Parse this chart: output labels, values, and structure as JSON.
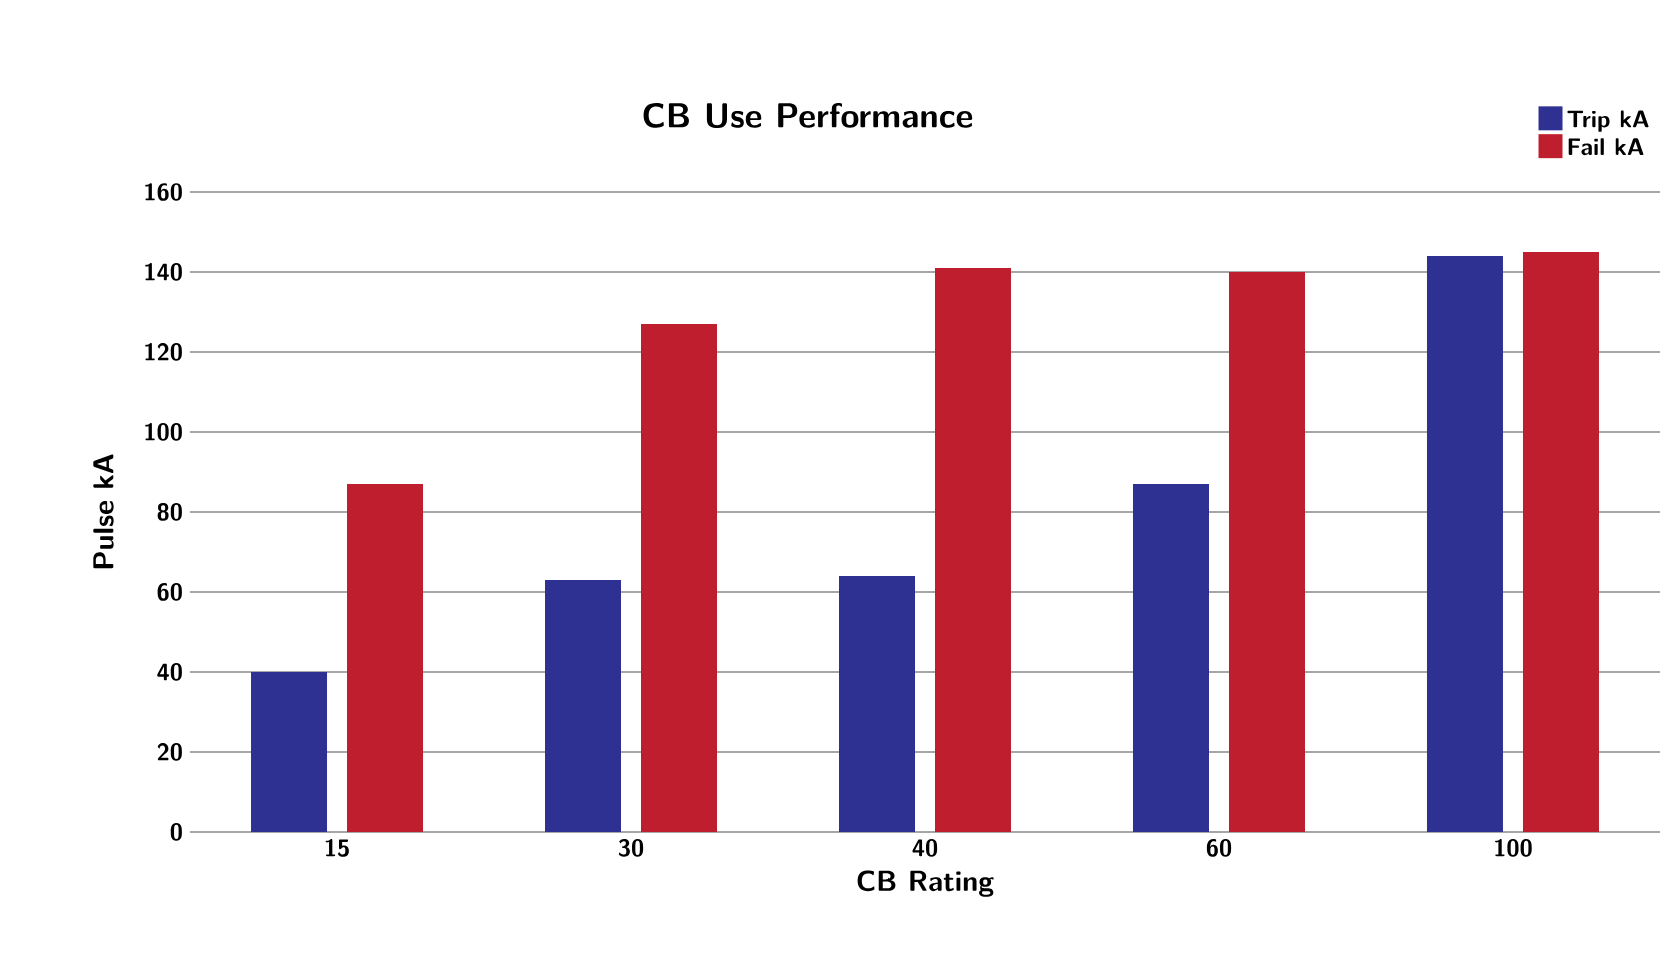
{
  "chart_data": {
    "type": "bar",
    "title": "CB Use Performance",
    "xlabel": "CB Rating",
    "ylabel": "Pulse kA",
    "categories": [
      "15",
      "30",
      "40",
      "60",
      "100"
    ],
    "series": [
      {
        "name": "Trip kA",
        "color": "#2e3192",
        "values": [
          40,
          63,
          64,
          87,
          144
        ]
      },
      {
        "name": "Fail kA",
        "color": "#be1e2d",
        "values": [
          87,
          127,
          141,
          140,
          145
        ]
      }
    ],
    "ylim": [
      0,
      160
    ],
    "yticks": [
      0,
      20,
      40,
      60,
      80,
      100,
      120,
      140,
      160
    ],
    "grid": "y",
    "legend": "top right"
  }
}
